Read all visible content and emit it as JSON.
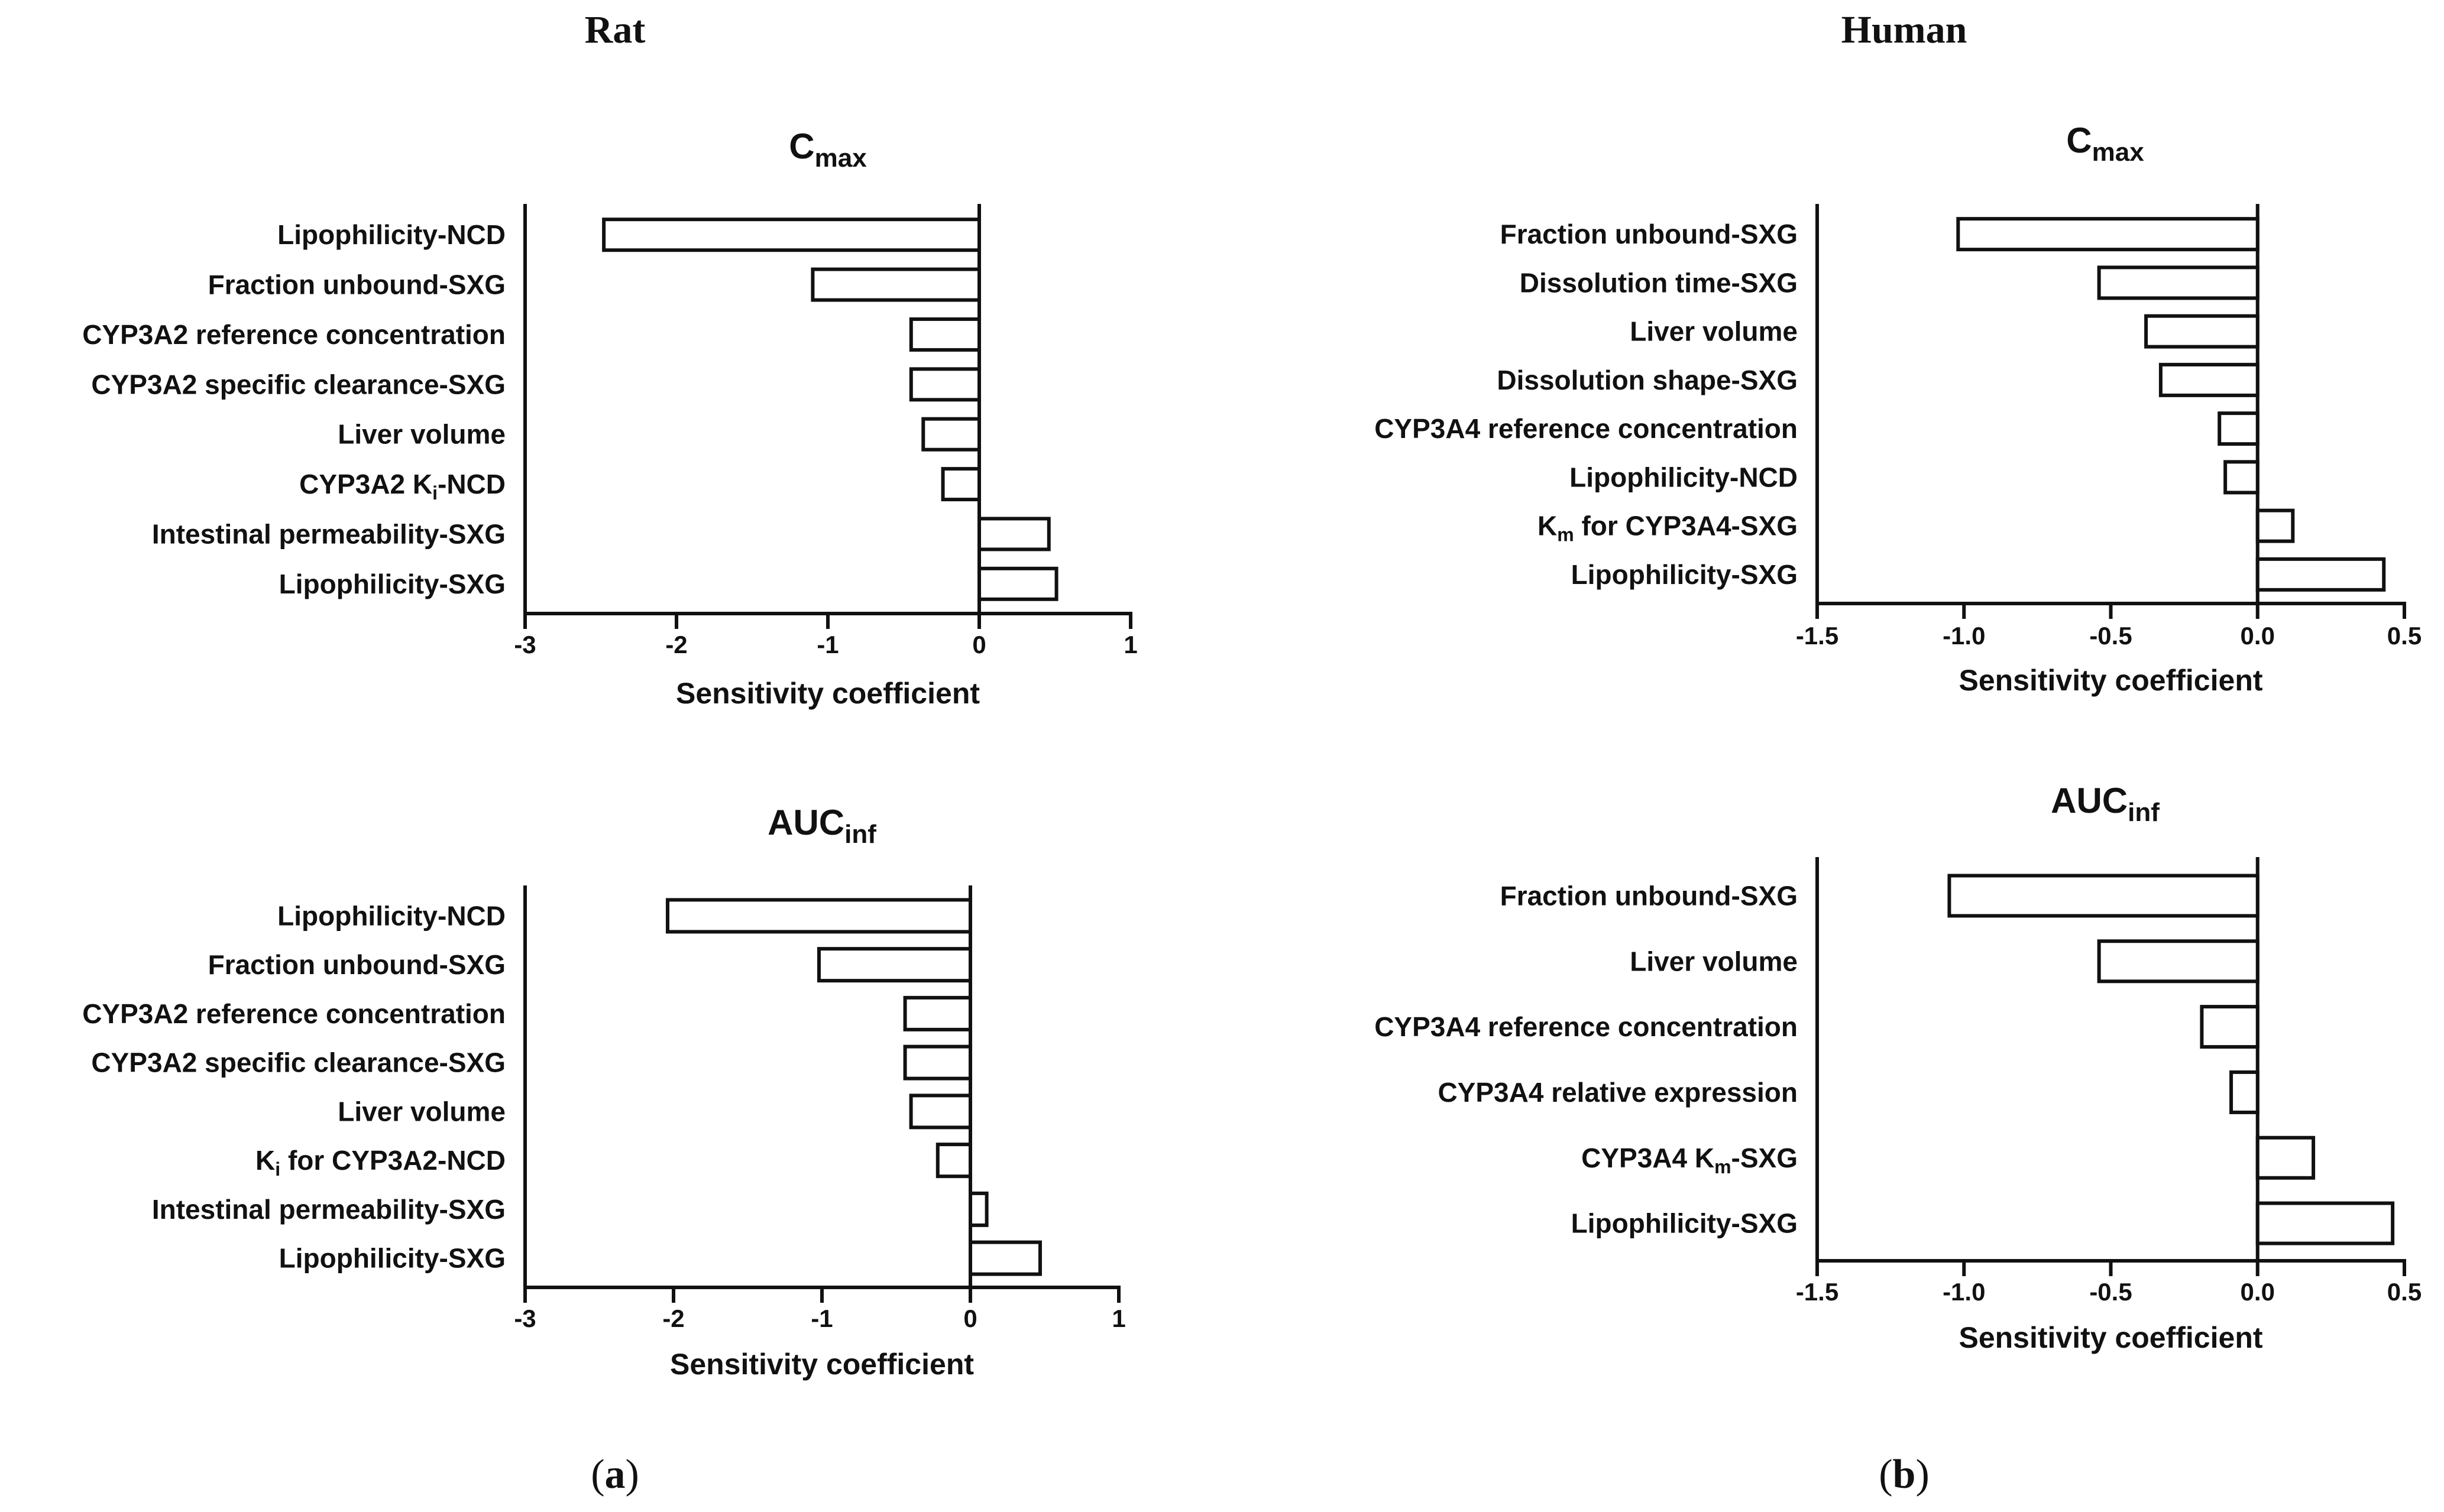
{
  "figure": {
    "panels": [
      {
        "heading": "Rat",
        "label_open": "(",
        "label_letter": "a",
        "label_close": ")"
      },
      {
        "heading": "Human",
        "label_open": "(",
        "label_letter": "b",
        "label_close": ")"
      }
    ]
  },
  "chart_data": [
    {
      "type": "bar",
      "orientation": "horizontal",
      "panel": "Rat",
      "title": "C",
      "title_subscript": "max",
      "categories": [
        "Lipophilicity-NCD",
        "Fraction unbound-SXG",
        "CYP3A2 reference concentration",
        "CYP3A2 specific clearance-SXG",
        "Liver volume",
        "CYP3A2 Ki-NCD",
        "Intestinal permeability-SXG",
        "Lipophilicity-SXG"
      ],
      "category_display": [
        [
          {
            "t": "Lipophilicity-NCD"
          }
        ],
        [
          {
            "t": "Fraction unbound-SXG"
          }
        ],
        [
          {
            "t": "CYP3A2 reference concentration"
          }
        ],
        [
          {
            "t": "CYP3A2 specific clearance-SXG"
          }
        ],
        [
          {
            "t": "Liver volume"
          }
        ],
        [
          {
            "t": "CYP3A2 K"
          },
          {
            "t": "i",
            "sub": true
          },
          {
            "t": "-NCD"
          }
        ],
        [
          {
            "t": "Intestinal permeability-SXG"
          }
        ],
        [
          {
            "t": "Lipophilicity-SXG"
          }
        ]
      ],
      "values": [
        -2.48,
        -1.1,
        -0.45,
        -0.45,
        -0.37,
        -0.24,
        0.46,
        0.51
      ],
      "xlabel": "Sensitivity coefficient",
      "xlim": [
        -3,
        1
      ],
      "xticks": [
        -3,
        -2,
        -1,
        0,
        1
      ],
      "xtick_labels": [
        "-3",
        "-2",
        "-1",
        "0",
        "1"
      ]
    },
    {
      "type": "bar",
      "orientation": "horizontal",
      "panel": "Rat",
      "title": "AUC",
      "title_subscript": "inf",
      "categories": [
        "Lipophilicity-NCD",
        "Fraction unbound-SXG",
        "CYP3A2 reference concentration",
        "CYP3A2 specific clearance-SXG",
        "Liver volume",
        "Ki for CYP3A2-NCD",
        "Intestinal permeability-SXG",
        "Lipophilicity-SXG"
      ],
      "category_display": [
        [
          {
            "t": "Lipophilicity-NCD"
          }
        ],
        [
          {
            "t": "Fraction unbound-SXG"
          }
        ],
        [
          {
            "t": "CYP3A2 reference concentration"
          }
        ],
        [
          {
            "t": "CYP3A2 specific clearance-SXG"
          }
        ],
        [
          {
            "t": "Liver volume"
          }
        ],
        [
          {
            "t": "K"
          },
          {
            "t": "i",
            "sub": true
          },
          {
            "t": " for CYP3A2-NCD"
          }
        ],
        [
          {
            "t": "Intestinal permeability-SXG"
          }
        ],
        [
          {
            "t": "Lipophilicity-SXG"
          }
        ]
      ],
      "values": [
        -2.04,
        -1.02,
        -0.44,
        -0.44,
        -0.4,
        -0.22,
        0.11,
        0.47
      ],
      "xlabel": "Sensitivity coefficient",
      "xlim": [
        -3,
        1
      ],
      "xticks": [
        -3,
        -2,
        -1,
        0,
        1
      ],
      "xtick_labels": [
        "-3",
        "-2",
        "-1",
        "0",
        "1"
      ]
    },
    {
      "type": "bar",
      "orientation": "horizontal",
      "panel": "Human",
      "title": "C",
      "title_subscript": "max",
      "categories": [
        "Fraction unbound-SXG",
        "Dissolution time-SXG",
        "Liver volume",
        "Dissolution shape-SXG",
        "CYP3A4 reference concentration",
        "Lipophilicity-NCD",
        "Km for CYP3A4-SXG",
        "Lipophilicity-SXG"
      ],
      "category_display": [
        [
          {
            "t": "Fraction unbound-SXG"
          }
        ],
        [
          {
            "t": "Dissolution time-SXG"
          }
        ],
        [
          {
            "t": "Liver volume"
          }
        ],
        [
          {
            "t": "Dissolution shape-SXG"
          }
        ],
        [
          {
            "t": "CYP3A4 reference concentration"
          }
        ],
        [
          {
            "t": "Lipophilicity-NCD"
          }
        ],
        [
          {
            "t": "K"
          },
          {
            "t": "m",
            "sub": true
          },
          {
            "t": " for CYP3A4-SXG"
          }
        ],
        [
          {
            "t": "Lipophilicity-SXG"
          }
        ]
      ],
      "values": [
        -1.02,
        -0.54,
        -0.38,
        -0.33,
        -0.13,
        -0.11,
        0.12,
        0.43
      ],
      "xlabel": "Sensitivity coefficient",
      "xlim": [
        -1.5,
        0.5
      ],
      "xticks": [
        -1.5,
        -1.0,
        -0.5,
        0.0,
        0.5
      ],
      "xtick_labels": [
        "-1.5",
        "-1.0",
        "-0.5",
        "0.0",
        "0.5"
      ]
    },
    {
      "type": "bar",
      "orientation": "horizontal",
      "panel": "Human",
      "title": "AUC",
      "title_subscript": "inf",
      "categories": [
        "Fraction unbound-SXG",
        "Liver volume",
        "CYP3A4 reference concentration",
        "CYP3A4 relative expression",
        "CYP3A4 Km-SXG",
        "Lipophilicity-SXG"
      ],
      "category_display": [
        [
          {
            "t": "Fraction unbound-SXG"
          }
        ],
        [
          {
            "t": "Liver volume"
          }
        ],
        [
          {
            "t": "CYP3A4 reference concentration"
          }
        ],
        [
          {
            "t": "CYP3A4 relative expression"
          }
        ],
        [
          {
            "t": "CYP3A4 K"
          },
          {
            "t": "m",
            "sub": true
          },
          {
            "t": "-SXG"
          }
        ],
        [
          {
            "t": "Lipophilicity-SXG"
          }
        ]
      ],
      "values": [
        -1.05,
        -0.54,
        -0.19,
        -0.09,
        0.19,
        0.46
      ],
      "xlabel": "Sensitivity coefficient",
      "xlim": [
        -1.5,
        0.5
      ],
      "xticks": [
        -1.5,
        -1.0,
        -0.5,
        0.0,
        0.5
      ],
      "xtick_labels": [
        "-1.5",
        "-1.0",
        "-0.5",
        "0.0",
        "0.5"
      ]
    }
  ]
}
